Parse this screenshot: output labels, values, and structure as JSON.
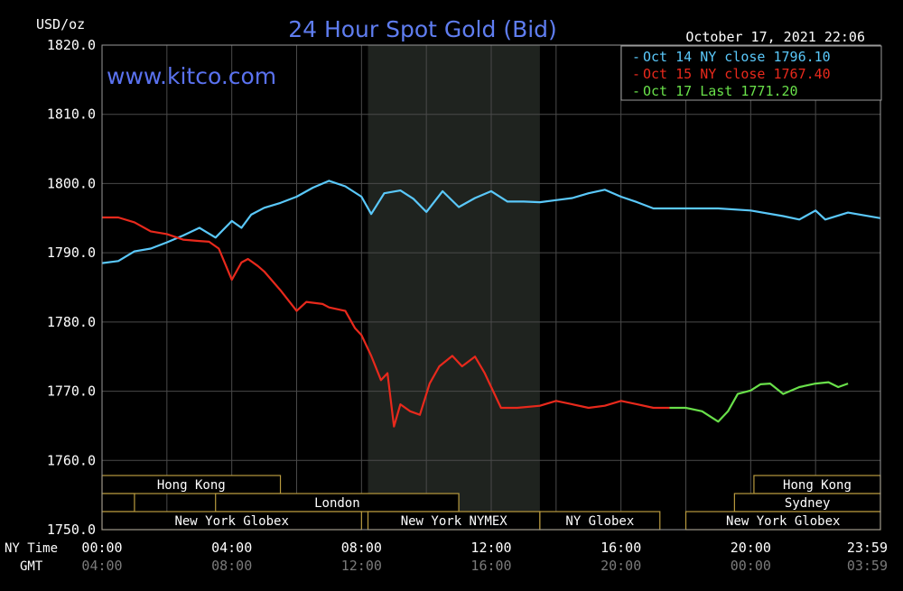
{
  "chart_data": {
    "type": "line",
    "title": "24 Hour Spot Gold (Bid)",
    "watermark": "www.kitco.com",
    "timestamp": "October 17, 2021 22:06",
    "ylabel": "USD/oz",
    "ylim": [
      1750,
      1820
    ],
    "y_ticks": [
      "1820.0",
      "1810.0",
      "1800.0",
      "1790.0",
      "1780.0",
      "1770.0",
      "1760.0",
      "1750.0"
    ],
    "xlim": [
      0,
      24
    ],
    "x_tick_positions": [
      0,
      4,
      8,
      12,
      16,
      20,
      24
    ],
    "x_ticks_ny": [
      "00:00",
      "04:00",
      "08:00",
      "12:00",
      "16:00",
      "20:00",
      "23:59"
    ],
    "x_ticks_gmt": [
      "04:00",
      "08:00",
      "12:00",
      "16:00",
      "20:00",
      "00:00",
      "03:59"
    ],
    "row_label_ny": "NY Time",
    "row_label_gmt": "GMT",
    "grid": true,
    "shaded_session": [
      8.2,
      13.5
    ],
    "legend_position": "top-right",
    "series": [
      {
        "name": "Oct 14 NY close 1796.10",
        "color": "#5ac8fa",
        "points": [
          [
            0,
            1788.5
          ],
          [
            0.5,
            1788.8
          ],
          [
            1,
            1790.2
          ],
          [
            1.5,
            1790.6
          ],
          [
            2,
            1791.5
          ],
          [
            2.5,
            1792.5
          ],
          [
            3,
            1793.6
          ],
          [
            3.5,
            1792.2
          ],
          [
            4,
            1794.6
          ],
          [
            4.3,
            1793.6
          ],
          [
            4.6,
            1795.5
          ],
          [
            5,
            1796.5
          ],
          [
            5.5,
            1797.2
          ],
          [
            6,
            1798.1
          ],
          [
            6.5,
            1799.4
          ],
          [
            7,
            1800.4
          ],
          [
            7.5,
            1799.6
          ],
          [
            8,
            1798.1
          ],
          [
            8.3,
            1795.6
          ],
          [
            8.7,
            1798.6
          ],
          [
            9.2,
            1799.0
          ],
          [
            9.6,
            1797.8
          ],
          [
            10,
            1795.9
          ],
          [
            10.5,
            1798.9
          ],
          [
            11,
            1796.6
          ],
          [
            11.5,
            1797.9
          ],
          [
            12,
            1798.9
          ],
          [
            12.5,
            1797.4
          ],
          [
            13,
            1797.4
          ],
          [
            13.5,
            1797.3
          ],
          [
            14,
            1797.6
          ],
          [
            14.5,
            1797.9
          ],
          [
            15,
            1798.6
          ],
          [
            15.5,
            1799.1
          ],
          [
            16,
            1798.1
          ],
          [
            16.5,
            1797.3
          ],
          [
            17,
            1796.4
          ],
          [
            18,
            1796.4
          ],
          [
            19,
            1796.4
          ],
          [
            20,
            1796.1
          ],
          [
            21,
            1795.3
          ],
          [
            21.5,
            1794.8
          ],
          [
            22,
            1796.1
          ],
          [
            22.3,
            1794.8
          ],
          [
            23,
            1795.8
          ],
          [
            24,
            1795.0
          ]
        ]
      },
      {
        "name": "Oct 15 NY close 1767.40",
        "color": "#e8291c",
        "points": [
          [
            0,
            1795.1
          ],
          [
            0.5,
            1795.1
          ],
          [
            1,
            1794.4
          ],
          [
            1.5,
            1793.1
          ],
          [
            2,
            1792.7
          ],
          [
            2.5,
            1791.9
          ],
          [
            3,
            1791.7
          ],
          [
            3.3,
            1791.6
          ],
          [
            3.6,
            1790.6
          ],
          [
            4,
            1786.1
          ],
          [
            4.3,
            1788.6
          ],
          [
            4.5,
            1789.1
          ],
          [
            4.8,
            1788.1
          ],
          [
            5,
            1787.3
          ],
          [
            5.5,
            1784.6
          ],
          [
            6,
            1781.6
          ],
          [
            6.3,
            1782.9
          ],
          [
            6.8,
            1782.6
          ],
          [
            7,
            1782.1
          ],
          [
            7.5,
            1781.6
          ],
          [
            7.8,
            1779.1
          ],
          [
            8,
            1778.1
          ],
          [
            8.3,
            1775.1
          ],
          [
            8.6,
            1771.6
          ],
          [
            8.8,
            1772.6
          ],
          [
            9,
            1764.9
          ],
          [
            9.2,
            1768.1
          ],
          [
            9.5,
            1767.1
          ],
          [
            9.8,
            1766.6
          ],
          [
            10.1,
            1771.1
          ],
          [
            10.4,
            1773.6
          ],
          [
            10.8,
            1775.1
          ],
          [
            11.1,
            1773.6
          ],
          [
            11.5,
            1775.0
          ],
          [
            11.8,
            1772.6
          ],
          [
            12,
            1770.6
          ],
          [
            12.3,
            1767.6
          ],
          [
            12.8,
            1767.6
          ],
          [
            13.5,
            1767.9
          ],
          [
            14,
            1768.6
          ],
          [
            14.5,
            1768.1
          ],
          [
            15,
            1767.6
          ],
          [
            15.5,
            1767.9
          ],
          [
            16,
            1768.6
          ],
          [
            16.5,
            1768.1
          ],
          [
            17,
            1767.6
          ],
          [
            17.5,
            1767.6
          ]
        ]
      },
      {
        "name": "Oct 17 Last 1771.20",
        "color": "#69e04a",
        "points": [
          [
            17.5,
            1767.6
          ],
          [
            18,
            1767.6
          ],
          [
            18.5,
            1767.1
          ],
          [
            19,
            1765.6
          ],
          [
            19.3,
            1767.1
          ],
          [
            19.6,
            1769.6
          ],
          [
            20,
            1770.1
          ],
          [
            20.3,
            1771.0
          ],
          [
            20.6,
            1771.1
          ],
          [
            21,
            1769.6
          ],
          [
            21.5,
            1770.6
          ],
          [
            22,
            1771.1
          ],
          [
            22.4,
            1771.3
          ],
          [
            22.7,
            1770.6
          ],
          [
            23,
            1771.1
          ]
        ]
      }
    ],
    "sessions": [
      {
        "label": "Hong Kong",
        "start": 0,
        "end": 5.5,
        "row": 0
      },
      {
        "label": "Hong Kong",
        "start": 20.1,
        "end": 24,
        "row": 0
      },
      {
        "label": "",
        "start": 0,
        "end": 1,
        "row": 1
      },
      {
        "label": "London",
        "start": 3.5,
        "end": 11,
        "row": 1
      },
      {
        "label": "Sydney",
        "start": 19.5,
        "end": 24,
        "row": 1
      },
      {
        "label": "New York Globex",
        "start": 0,
        "end": 8,
        "row": 2
      },
      {
        "label": "New York NYMEX",
        "start": 8.2,
        "end": 13.5,
        "row": 2
      },
      {
        "label": "NY Globex",
        "start": 13.5,
        "end": 17.2,
        "row": 2
      },
      {
        "label": "New York Globex",
        "start": 18,
        "end": 24,
        "row": 2
      }
    ]
  }
}
